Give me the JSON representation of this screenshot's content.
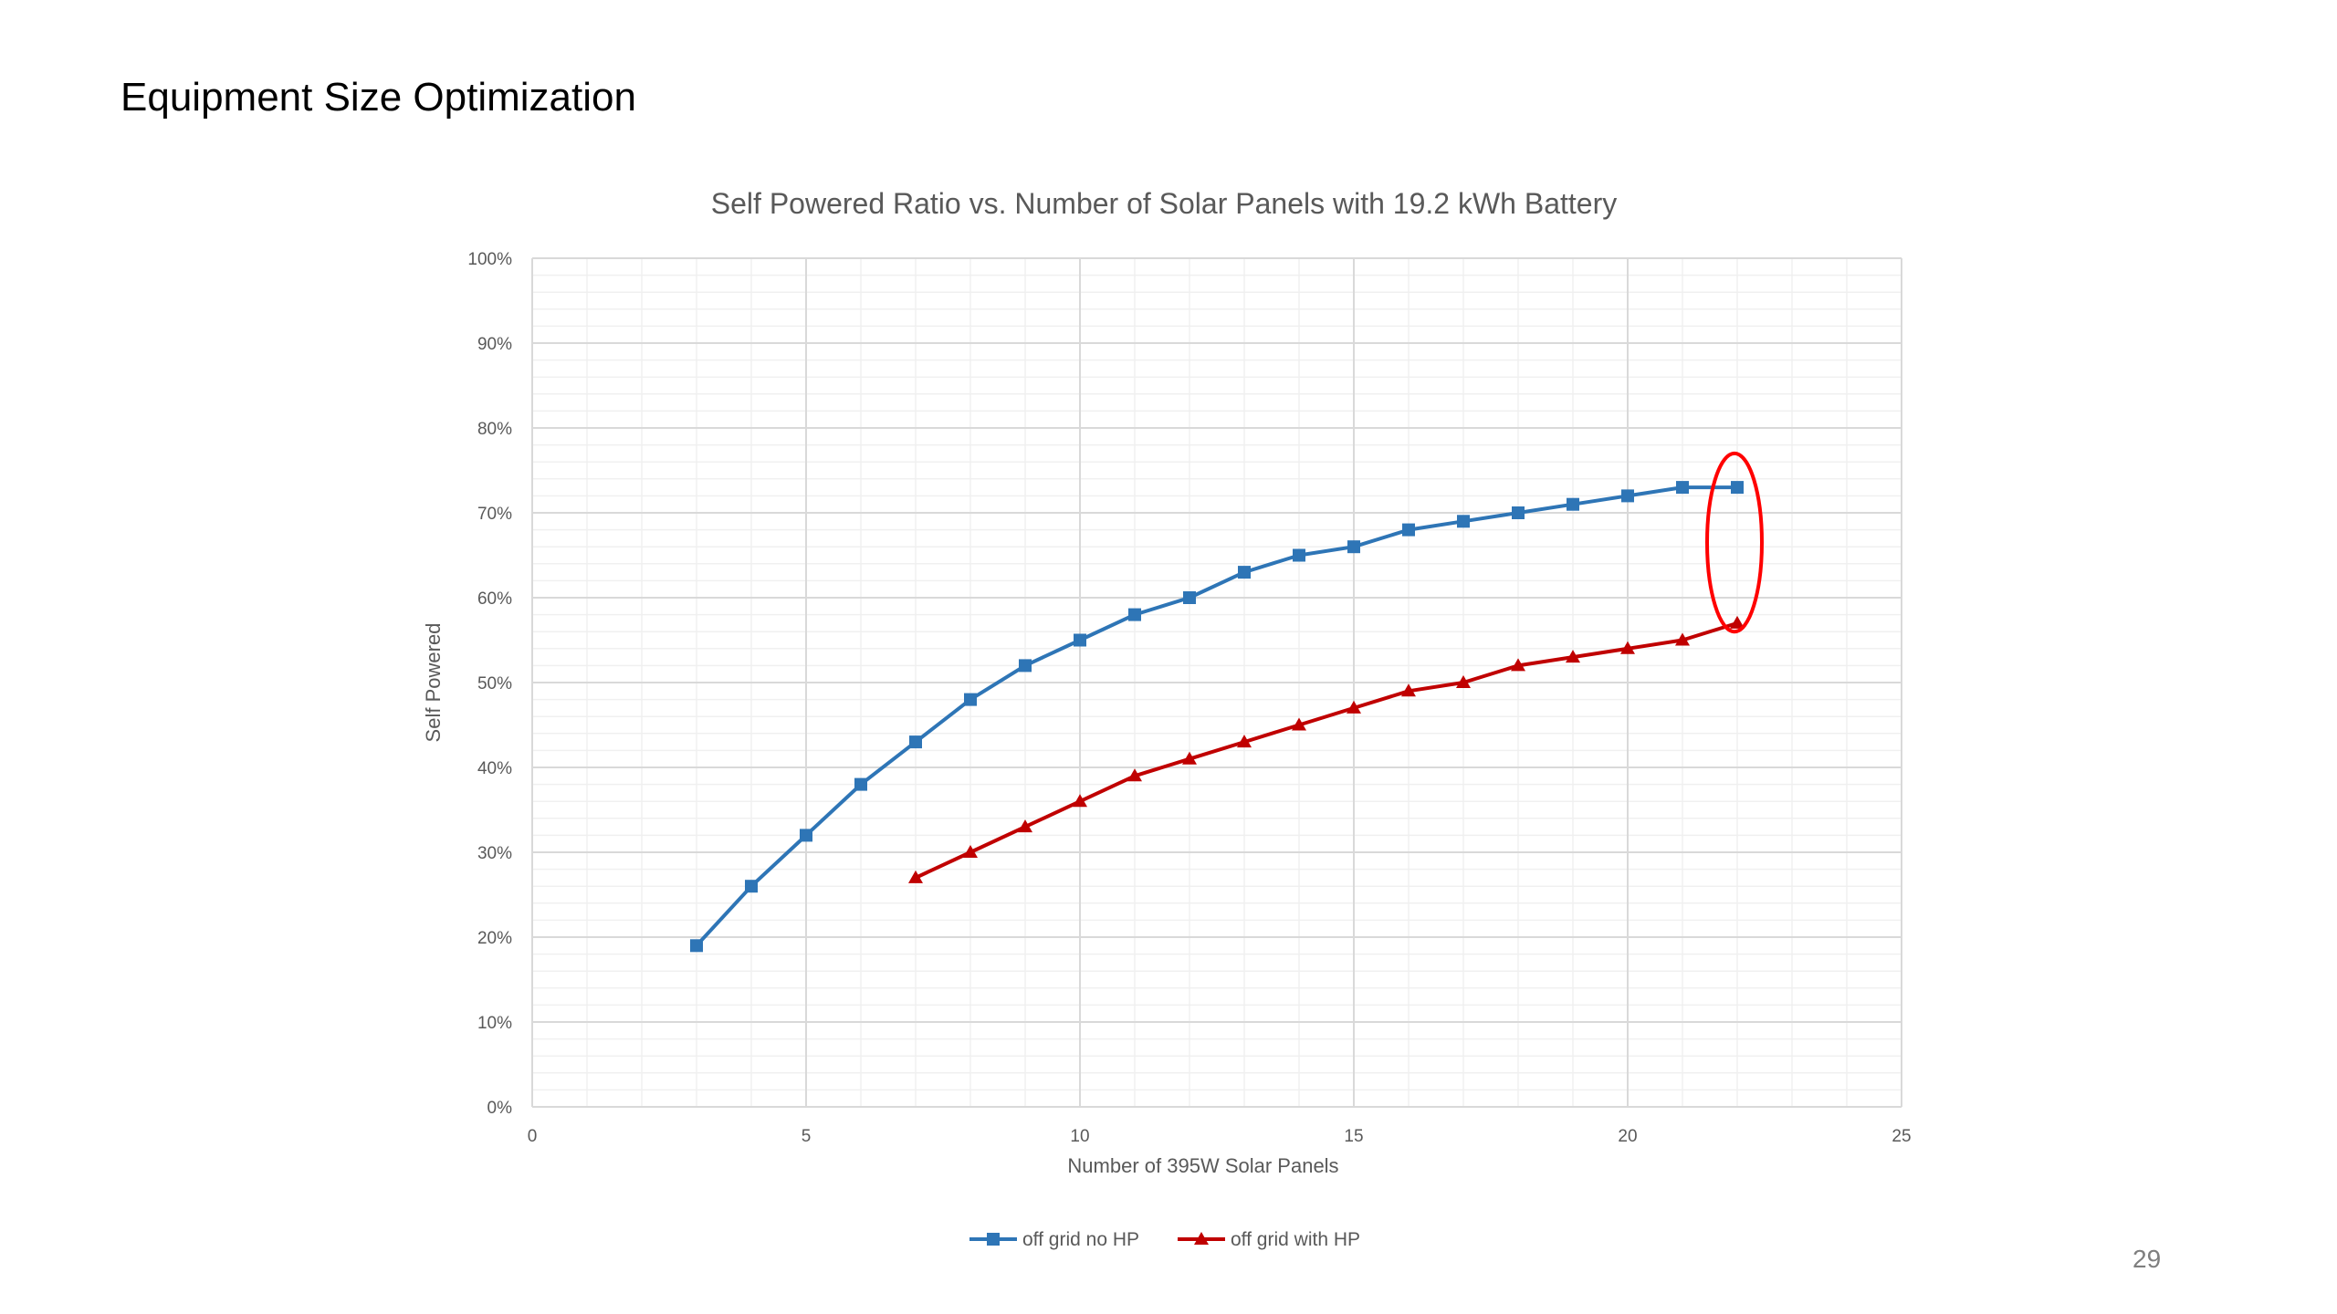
{
  "slide": {
    "title": "Equipment Size Optimization",
    "page_number": "29"
  },
  "chart_data": {
    "type": "line",
    "title": "Self Powered Ratio vs. Number of Solar Panels with 19.2 kWh Battery",
    "xlabel": "Number of 395W Solar Panels",
    "ylabel": "Self Powered",
    "xlim": [
      0,
      25
    ],
    "ylim": [
      0,
      100
    ],
    "x_ticks": [
      "0",
      "5",
      "10",
      "15",
      "20",
      "25"
    ],
    "y_ticks": [
      "0%",
      "10%",
      "20%",
      "30%",
      "40%",
      "50%",
      "60%",
      "70%",
      "80%",
      "90%",
      "100%"
    ],
    "grid": true,
    "legend_position": "bottom",
    "series": [
      {
        "name": "off grid no HP",
        "color": "#2e75b6",
        "marker": "square",
        "points": [
          [
            3,
            19
          ],
          [
            4,
            26
          ],
          [
            5,
            32
          ],
          [
            6,
            38
          ],
          [
            7,
            43
          ],
          [
            8,
            48
          ],
          [
            9,
            52
          ],
          [
            10,
            55
          ],
          [
            11,
            58
          ],
          [
            12,
            60
          ],
          [
            13,
            63
          ],
          [
            14,
            65
          ],
          [
            15,
            66
          ],
          [
            16,
            68
          ],
          [
            17,
            69
          ],
          [
            18,
            70
          ],
          [
            19,
            71
          ],
          [
            20,
            72
          ],
          [
            21,
            73
          ],
          [
            22,
            73
          ]
        ]
      },
      {
        "name": "off grid with HP",
        "color": "#c00000",
        "marker": "triangle",
        "points": [
          [
            7,
            27
          ],
          [
            8,
            30
          ],
          [
            9,
            33
          ],
          [
            10,
            36
          ],
          [
            11,
            39
          ],
          [
            12,
            41
          ],
          [
            13,
            43
          ],
          [
            14,
            45
          ],
          [
            15,
            47
          ],
          [
            16,
            49
          ],
          [
            17,
            50
          ],
          [
            18,
            52
          ],
          [
            19,
            53
          ],
          [
            20,
            54
          ],
          [
            21,
            55
          ],
          [
            22,
            57
          ]
        ]
      }
    ],
    "annotation": {
      "shape": "ellipse",
      "color": "#ff0000",
      "x": 22,
      "y_range": [
        56,
        77
      ]
    }
  }
}
